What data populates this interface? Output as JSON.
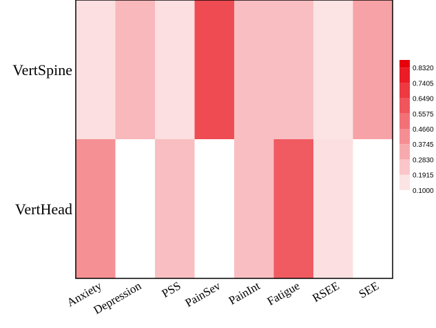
{
  "chart_data": {
    "type": "heatmap",
    "title": "",
    "xlabel": "",
    "ylabel": "",
    "rows": [
      "VertSpine",
      "VertHead"
    ],
    "columns": [
      "Anxiety",
      "Depression",
      "PSS",
      "PainSev",
      "PainInt",
      "Fatigue",
      "RSEE",
      "SEE"
    ],
    "values": [
      [
        0.2,
        0.33,
        0.2,
        0.68,
        0.31,
        0.31,
        0.19,
        0.4
      ],
      [
        0.46,
        0.1,
        0.31,
        0.1,
        0.31,
        0.63,
        0.2,
        0.1
      ]
    ],
    "colorbar": {
      "ticks": [
        "0.8320",
        "0.7405",
        "0.6490",
        "0.5575",
        "0.4660",
        "0.3745",
        "0.2830",
        "0.1915",
        "0.1000"
      ],
      "min": 0.1,
      "max": 0.9235,
      "low_color": "#ffffff",
      "high_color": "#e8000b",
      "placement": "right"
    },
    "grid": false
  }
}
